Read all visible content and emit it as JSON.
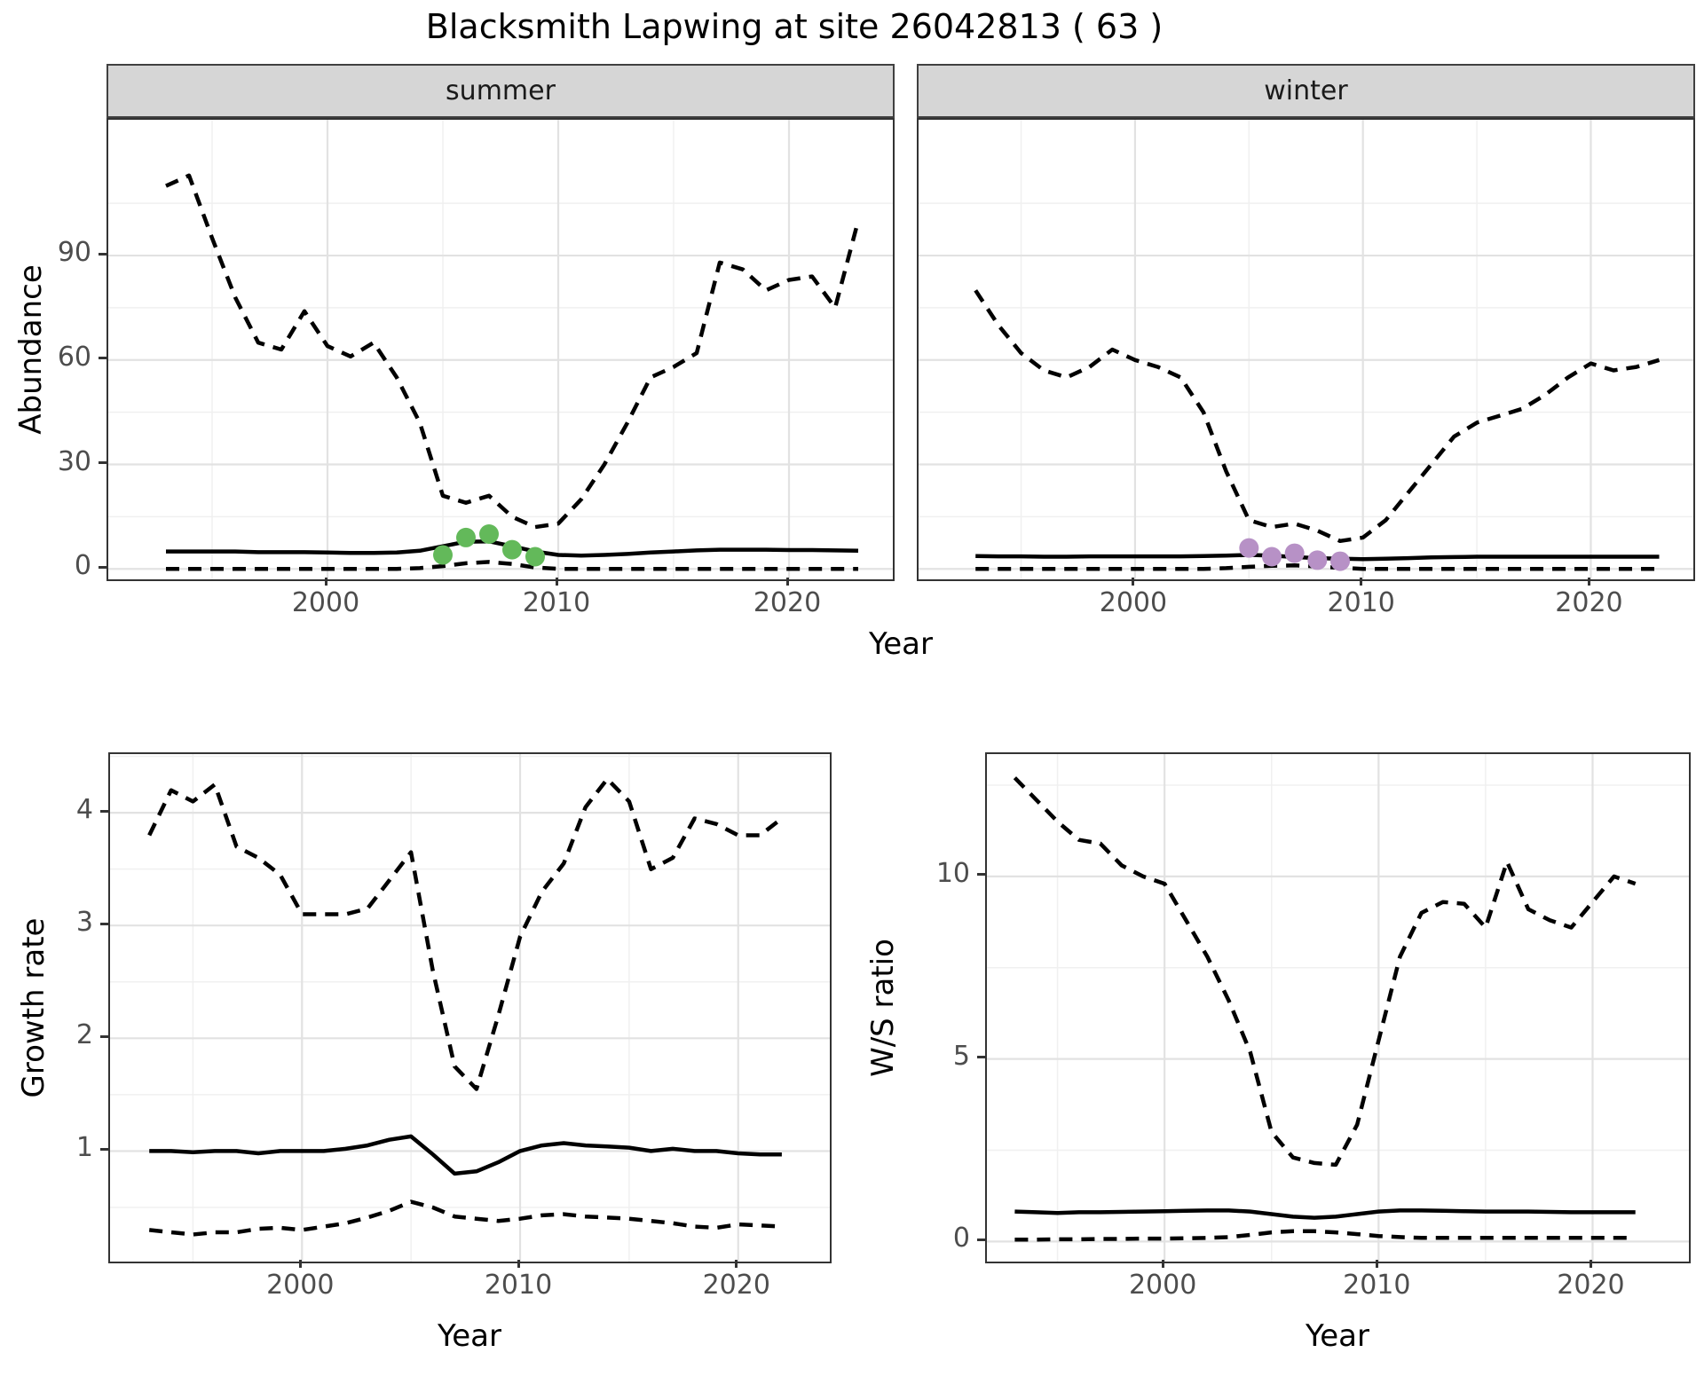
{
  "title": "Blacksmith Lapwing at site 26042813 ( 63 )",
  "top_row": {
    "ylabel": "Abundance",
    "xlabel": "Year"
  },
  "colors": {
    "background": "#ffffff",
    "panel_border": "#333333",
    "strip_background": "#d6d6d6",
    "strip_border": "#404040",
    "grid_major": "#e2e2e2",
    "grid_minor": "#f0f0f0",
    "line": "#000000",
    "tick_text": "#4d4d4d",
    "tick_mark": "#333333",
    "summer_points": "#63b95a",
    "winter_points": "#b791c6"
  },
  "chart_data": [
    {
      "id": "abundance-summer",
      "type": "line",
      "facet_label": "summer",
      "ylabel": "Abundance",
      "xlabel": "Year",
      "xlim": [
        1990.5,
        2024.5
      ],
      "ylim": [
        -3,
        129
      ],
      "xticks": [
        2000,
        2010,
        2020
      ],
      "yticks": [
        0,
        30,
        60,
        90
      ],
      "xminor": [
        1995,
        2005,
        2015
      ],
      "yminor": [
        15,
        45,
        75,
        105
      ],
      "show_y_axis": true,
      "x": [
        1993,
        1994,
        1995,
        1996,
        1997,
        1998,
        1999,
        2000,
        2001,
        2002,
        2003,
        2004,
        2005,
        2006,
        2007,
        2008,
        2009,
        2010,
        2011,
        2012,
        2013,
        2014,
        2015,
        2016,
        2017,
        2018,
        2019,
        2020,
        2021,
        2022,
        2023
      ],
      "series": [
        {
          "name": "upper-95ci",
          "style": "dashed",
          "values": [
            110,
            113,
            95,
            78,
            65,
            63,
            74,
            64,
            61,
            65,
            55,
            42,
            21,
            19,
            21,
            15,
            12,
            13,
            20,
            30,
            42,
            55,
            58,
            62,
            88,
            86,
            80,
            83,
            84,
            75,
            100
          ]
        },
        {
          "name": "median",
          "style": "solid",
          "values": [
            5,
            5,
            5,
            5,
            4.8,
            4.8,
            4.8,
            4.7,
            4.6,
            4.6,
            4.7,
            5.2,
            6.5,
            7.8,
            7.9,
            6.5,
            5,
            4,
            3.8,
            4,
            4.3,
            4.7,
            5,
            5.3,
            5.5,
            5.5,
            5.5,
            5.4,
            5.4,
            5.3,
            5.2
          ]
        },
        {
          "name": "lower-95ci",
          "style": "dashed",
          "values": [
            0,
            0,
            0,
            0,
            0,
            0,
            0,
            0,
            0,
            0,
            0,
            0.2,
            0.8,
            1.6,
            2,
            1.4,
            0.4,
            0,
            0,
            0,
            0,
            0,
            0,
            0,
            0,
            0,
            0,
            0,
            0,
            0,
            0
          ]
        }
      ],
      "points": {
        "name": "observed-counts-summer",
        "color_key": "summer_points",
        "x": [
          2005,
          2006,
          2007,
          2008,
          2009
        ],
        "y": [
          4,
          9,
          10,
          5.5,
          3.5
        ]
      }
    },
    {
      "id": "abundance-winter",
      "type": "line",
      "facet_label": "winter",
      "ylabel": "Abundance",
      "xlabel": "Year",
      "xlim": [
        1990.5,
        2024.5
      ],
      "ylim": [
        -3,
        129
      ],
      "xticks": [
        2000,
        2010,
        2020
      ],
      "yticks": [
        0,
        30,
        60,
        90
      ],
      "xminor": [
        1995,
        2005,
        2015
      ],
      "yminor": [
        15,
        45,
        75,
        105
      ],
      "show_y_axis": false,
      "x": [
        1993,
        1994,
        1995,
        1996,
        1997,
        1998,
        1999,
        2000,
        2001,
        2002,
        2003,
        2004,
        2005,
        2006,
        2007,
        2008,
        2009,
        2010,
        2011,
        2012,
        2013,
        2014,
        2015,
        2016,
        2017,
        2018,
        2019,
        2020,
        2021,
        2022,
        2023
      ],
      "series": [
        {
          "name": "upper-95ci",
          "style": "dashed",
          "values": [
            80,
            70,
            62,
            57,
            55,
            58,
            63,
            60,
            58,
            55,
            45,
            28,
            14,
            12,
            13,
            11,
            8,
            9,
            14,
            22,
            30,
            38,
            42,
            44,
            46,
            50,
            55,
            59,
            57,
            58,
            60
          ]
        },
        {
          "name": "median",
          "style": "solid",
          "values": [
            3.7,
            3.6,
            3.6,
            3.5,
            3.5,
            3.6,
            3.6,
            3.6,
            3.6,
            3.6,
            3.7,
            3.8,
            4,
            3.8,
            3.4,
            3.1,
            2.9,
            2.8,
            2.9,
            3.1,
            3.3,
            3.4,
            3.5,
            3.5,
            3.5,
            3.5,
            3.5,
            3.5,
            3.5,
            3.5,
            3.5
          ]
        },
        {
          "name": "lower-95ci",
          "style": "dashed",
          "values": [
            0,
            0,
            0,
            0,
            0,
            0,
            0,
            0,
            0,
            0,
            0,
            0.2,
            0.6,
            0.9,
            1.0,
            0.7,
            0.3,
            0,
            0,
            0,
            0,
            0,
            0,
            0,
            0,
            0,
            0,
            0,
            0,
            0,
            0
          ]
        }
      ],
      "points": {
        "name": "observed-counts-winter",
        "color_key": "winter_points",
        "x": [
          2005,
          2006,
          2007,
          2008,
          2009
        ],
        "y": [
          6,
          3.5,
          4.5,
          2.5,
          2.2
        ]
      }
    },
    {
      "id": "growth-rate",
      "type": "line",
      "facet_label": "",
      "ylabel": "Growth rate",
      "xlabel": "Year",
      "xlim": [
        1991.2,
        2024.2
      ],
      "ylim": [
        0.02,
        4.52
      ],
      "xticks": [
        2000,
        2010,
        2020
      ],
      "yticks": [
        1,
        2,
        3,
        4
      ],
      "xminor": [
        1995,
        2005,
        2015
      ],
      "yminor": [
        0.5,
        1.5,
        2.5,
        3.5,
        4.5
      ],
      "show_y_axis": true,
      "x": [
        1993,
        1994,
        1995,
        1996,
        1997,
        1998,
        1999,
        2000,
        2001,
        2002,
        2003,
        2004,
        2005,
        2006,
        2007,
        2008,
        2009,
        2010,
        2011,
        2012,
        2013,
        2014,
        2015,
        2016,
        2017,
        2018,
        2019,
        2020,
        2021,
        2022
      ],
      "series": [
        {
          "name": "upper-95ci",
          "style": "dashed",
          "values": [
            3.8,
            4.2,
            4.1,
            4.25,
            3.7,
            3.6,
            3.45,
            3.1,
            3.1,
            3.1,
            3.15,
            3.4,
            3.65,
            2.6,
            1.75,
            1.55,
            2.2,
            2.9,
            3.3,
            3.55,
            4.05,
            4.3,
            4.1,
            3.5,
            3.6,
            3.95,
            3.9,
            3.8,
            3.8,
            3.95
          ]
        },
        {
          "name": "median",
          "style": "solid",
          "values": [
            1.0,
            1.0,
            0.99,
            1.0,
            1.0,
            0.98,
            1.0,
            1.0,
            1.0,
            1.02,
            1.05,
            1.1,
            1.13,
            0.97,
            0.8,
            0.82,
            0.9,
            1.0,
            1.05,
            1.07,
            1.05,
            1.04,
            1.03,
            1.0,
            1.02,
            1.0,
            1.0,
            0.98,
            0.97,
            0.97
          ]
        },
        {
          "name": "lower-95ci",
          "style": "dashed",
          "values": [
            0.3,
            0.28,
            0.26,
            0.28,
            0.28,
            0.31,
            0.32,
            0.3,
            0.33,
            0.36,
            0.41,
            0.47,
            0.55,
            0.5,
            0.42,
            0.4,
            0.38,
            0.4,
            0.43,
            0.44,
            0.42,
            0.41,
            0.4,
            0.38,
            0.36,
            0.33,
            0.32,
            0.35,
            0.34,
            0.33
          ]
        }
      ],
      "points": null
    },
    {
      "id": "ws-ratio",
      "type": "line",
      "facet_label": "",
      "ylabel": "W/S ratio",
      "xlabel": "Year",
      "xlim": [
        1991.7,
        2024.5
      ],
      "ylim": [
        -0.55,
        13.35
      ],
      "xticks": [
        2000,
        2010,
        2020
      ],
      "yticks": [
        0,
        5,
        10
      ],
      "xminor": [
        1995,
        2005,
        2015
      ],
      "yminor": [
        2.5,
        7.5,
        12.5
      ],
      "show_y_axis": true,
      "x": [
        1993,
        1994,
        1995,
        1996,
        1997,
        1998,
        1999,
        2000,
        2001,
        2002,
        2003,
        2004,
        2005,
        2006,
        2007,
        2008,
        2009,
        2010,
        2011,
        2012,
        2013,
        2014,
        2015,
        2016,
        2017,
        2018,
        2019,
        2020,
        2021,
        2022
      ],
      "series": [
        {
          "name": "upper-95ci",
          "style": "dashed",
          "values": [
            12.7,
            12.1,
            11.5,
            11.0,
            10.9,
            10.3,
            10.0,
            9.8,
            8.8,
            7.8,
            6.6,
            5.2,
            3.0,
            2.3,
            2.15,
            2.1,
            3.2,
            5.5,
            7.8,
            9.0,
            9.3,
            9.25,
            8.6,
            10.4,
            9.1,
            8.8,
            8.6,
            9.3,
            10.0,
            9.8
          ]
        },
        {
          "name": "median",
          "style": "solid",
          "values": [
            0.82,
            0.8,
            0.78,
            0.8,
            0.8,
            0.81,
            0.82,
            0.83,
            0.84,
            0.85,
            0.85,
            0.82,
            0.75,
            0.68,
            0.65,
            0.68,
            0.75,
            0.82,
            0.85,
            0.85,
            0.84,
            0.83,
            0.82,
            0.82,
            0.82,
            0.81,
            0.8,
            0.8,
            0.8,
            0.8
          ]
        },
        {
          "name": "lower-95ci",
          "style": "dashed",
          "values": [
            0.05,
            0.05,
            0.06,
            0.06,
            0.07,
            0.07,
            0.08,
            0.08,
            0.09,
            0.1,
            0.12,
            0.18,
            0.25,
            0.28,
            0.28,
            0.25,
            0.2,
            0.15,
            0.12,
            0.1,
            0.1,
            0.1,
            0.1,
            0.1,
            0.1,
            0.1,
            0.1,
            0.1,
            0.1,
            0.1
          ]
        }
      ],
      "points": null
    }
  ]
}
